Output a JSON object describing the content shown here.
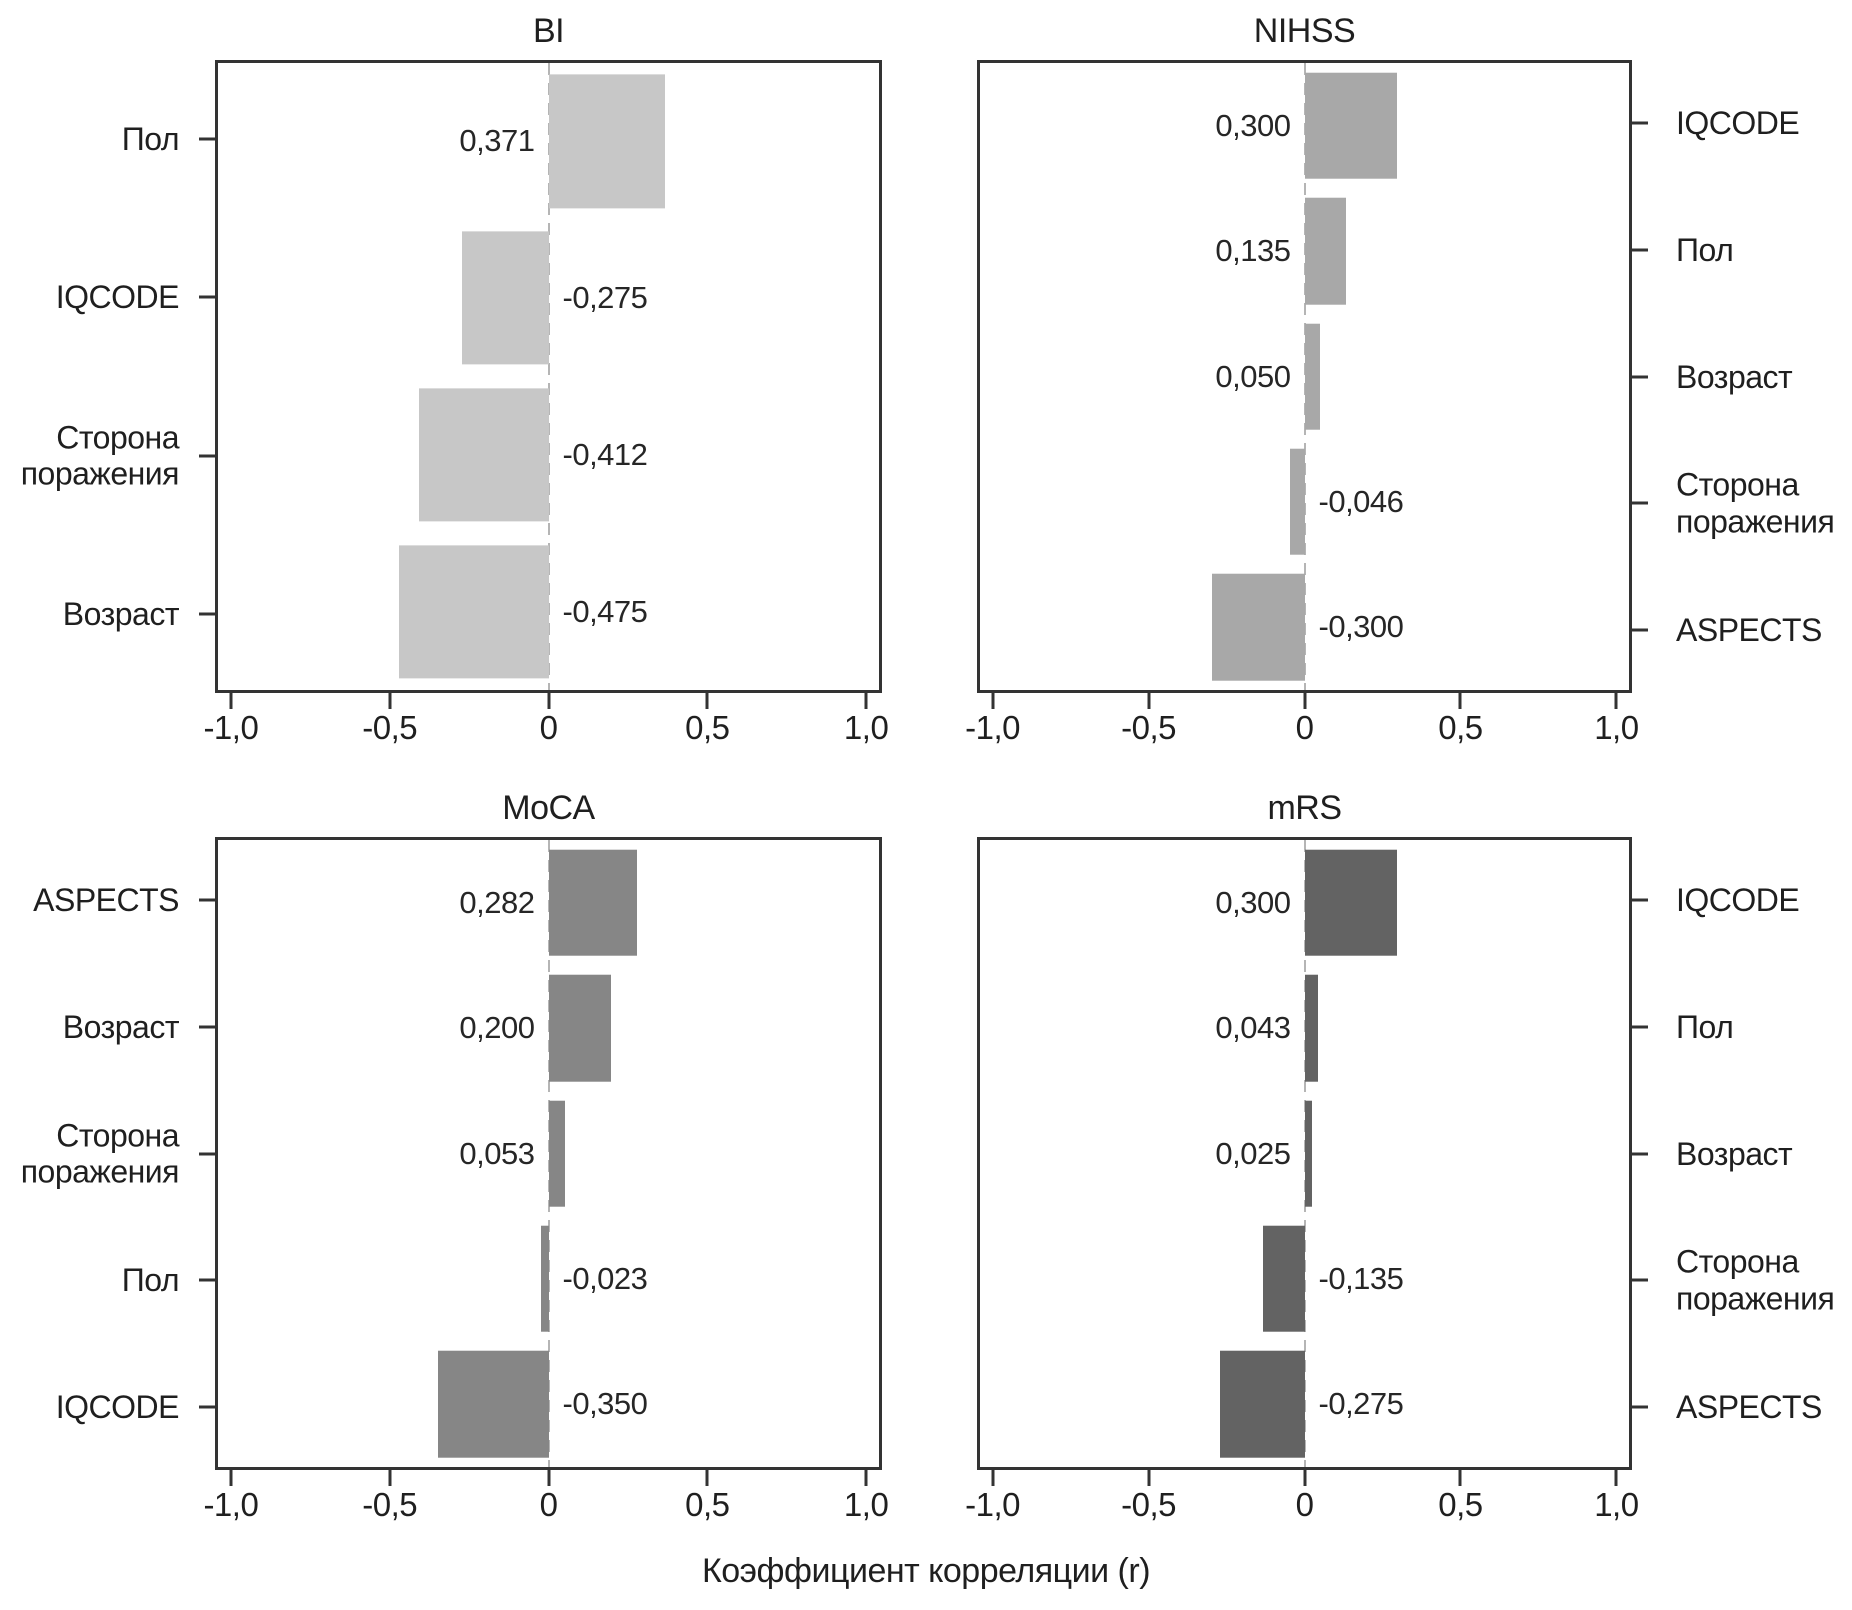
{
  "figure": {
    "xlabel": "Коэффициент корреляции (r)",
    "x_ticks": [
      "-1,0",
      "-0,5",
      "0",
      "0,5",
      "1,0"
    ],
    "x_tick_values": [
      -1,
      -0.5,
      0,
      0.5,
      1
    ],
    "xlim": [
      -1.05,
      1.05
    ],
    "grid": "off",
    "zero_line_color": "#b5b5b5",
    "frame_color": "#333333"
  },
  "chart_data": [
    {
      "type": "bar",
      "orientation": "horizontal",
      "title": "BI",
      "label_side": "left",
      "bar_color": "#c7c7c7",
      "categories": [
        "Пол",
        "IQCODE",
        "Сторона поражения",
        "Возраст"
      ],
      "values": [
        0.371,
        -0.275,
        -0.412,
        -0.475
      ],
      "value_labels": [
        "0,371",
        "-0,275",
        "-0,412",
        "-0,475"
      ]
    },
    {
      "type": "bar",
      "orientation": "horizontal",
      "title": "NIHSS",
      "label_side": "right",
      "bar_color": "#a8a8a8",
      "categories": [
        "IQCODE",
        "Пол",
        "Возраст",
        "Сторона поражения",
        "ASPECTS"
      ],
      "values": [
        0.3,
        0.135,
        0.05,
        -0.046,
        -0.3
      ],
      "value_labels": [
        "0,300",
        "0,135",
        "0,050",
        "-0,046",
        "-0,300"
      ]
    },
    {
      "type": "bar",
      "orientation": "horizontal",
      "title": "MoCA",
      "label_side": "left",
      "bar_color": "#868686",
      "categories": [
        "ASPECTS",
        "Возраст",
        "Сторона поражения",
        "Пол",
        "IQCODE"
      ],
      "values": [
        0.282,
        0.2,
        0.053,
        -0.023,
        -0.35
      ],
      "value_labels": [
        "0,282",
        "0,200",
        "0,053",
        "-0,023",
        "-0,350"
      ]
    },
    {
      "type": "bar",
      "orientation": "horizontal",
      "title": "mRS",
      "label_side": "right",
      "bar_color": "#636363",
      "categories": [
        "IQCODE",
        "Пол",
        "Возраст",
        "Сторона поражения",
        "ASPECTS"
      ],
      "values": [
        0.3,
        0.043,
        0.025,
        -0.135,
        -0.275
      ],
      "value_labels": [
        "0,300",
        "0,043",
        "0,025",
        "-0,135",
        "-0,275"
      ]
    }
  ]
}
